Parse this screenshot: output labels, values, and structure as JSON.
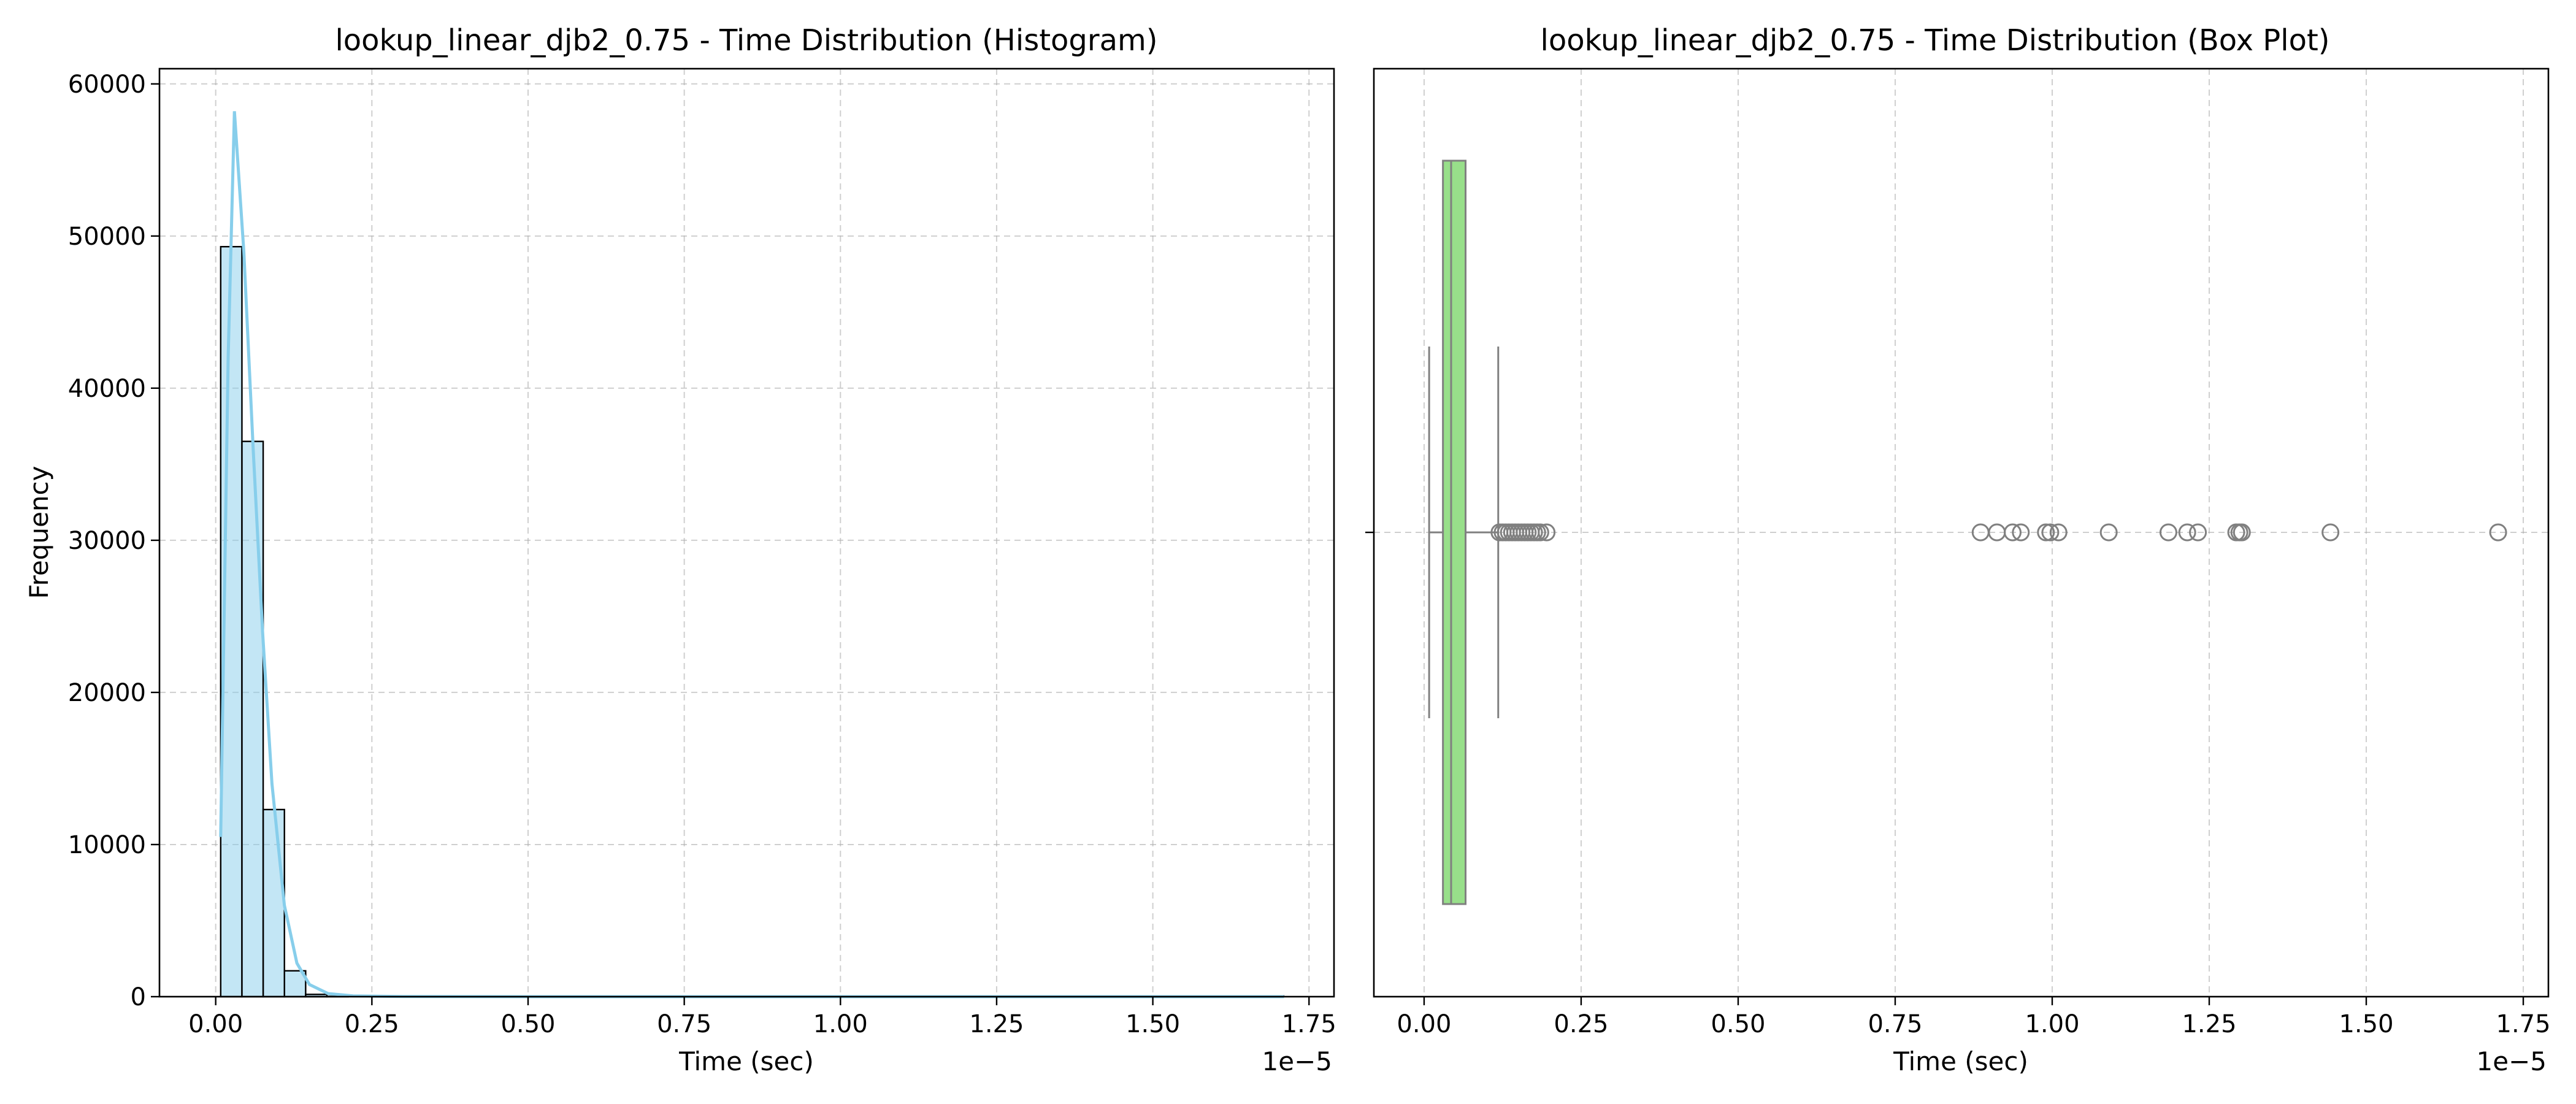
{
  "chart_data": [
    {
      "type": "bar",
      "subtype": "histogram",
      "title": "lookup_linear_djb2_0.75 - Time Distribution (Histogram)",
      "xlabel": "Time (sec)",
      "ylabel": "Frequency",
      "x_offset_text": "1e−5",
      "xlim": [
        -0.09,
        1.79
      ],
      "ylim": [
        0,
        61000
      ],
      "x_ticks": [
        0.0,
        0.25,
        0.5,
        0.75,
        1.0,
        1.25,
        1.5,
        1.75
      ],
      "x_tick_labels": [
        "0.00",
        "0.25",
        "0.50",
        "0.75",
        "1.00",
        "1.25",
        "1.50",
        "1.75"
      ],
      "y_ticks": [
        0,
        10000,
        20000,
        30000,
        40000,
        50000,
        60000
      ],
      "y_tick_labels": [
        "0",
        "10000",
        "20000",
        "30000",
        "40000",
        "50000",
        "60000"
      ],
      "grid": true,
      "bar_color": "#87ceeb",
      "bar_edge_color": "#000000",
      "kde_color": "#87ceeb",
      "bins": [
        {
          "x0": 0.008,
          "x1": 0.042,
          "count": 49300
        },
        {
          "x0": 0.042,
          "x1": 0.076,
          "count": 36500
        },
        {
          "x0": 0.076,
          "x1": 0.11,
          "count": 12300
        },
        {
          "x0": 0.11,
          "x1": 0.144,
          "count": 1700
        },
        {
          "x0": 0.144,
          "x1": 0.178,
          "count": 150
        },
        {
          "x0": 0.178,
          "x1": 0.212,
          "count": 20
        }
      ],
      "tail_bin_width": 0.034,
      "tail_range": [
        0.212,
        1.71
      ],
      "kde": {
        "x": [
          0.008,
          0.02,
          0.03,
          0.045,
          0.06,
          0.075,
          0.09,
          0.11,
          0.13,
          0.15,
          0.18,
          0.22,
          0.3,
          0.5,
          1.0,
          1.5,
          1.71
        ],
        "y": [
          10500,
          42000,
          58200,
          49000,
          36000,
          24000,
          14000,
          6000,
          2200,
          800,
          200,
          50,
          10,
          0,
          0,
          0,
          0
        ]
      }
    },
    {
      "type": "box",
      "title": "lookup_linear_djb2_0.75 - Time Distribution (Box Plot)",
      "xlabel": "Time (sec)",
      "x_offset_text": "1e−5",
      "xlim": [
        -0.08,
        1.79
      ],
      "x_ticks": [
        0.0,
        0.25,
        0.5,
        0.75,
        1.0,
        1.25,
        1.5,
        1.75
      ],
      "x_tick_labels": [
        "0.00",
        "0.25",
        "0.50",
        "0.75",
        "1.00",
        "1.25",
        "1.50",
        "1.75"
      ],
      "grid": true,
      "box_color": "#98df8a",
      "line_color": "#808080",
      "whisker_low": 0.008,
      "q1": 0.03,
      "median": 0.043,
      "q3": 0.066,
      "whisker_high": 0.118,
      "outliers": [
        0.12,
        0.125,
        0.13,
        0.135,
        0.14,
        0.145,
        0.15,
        0.155,
        0.16,
        0.165,
        0.17,
        0.175,
        0.18,
        0.185,
        0.195,
        0.886,
        0.912,
        0.937,
        0.95,
        0.99,
        0.997,
        1.01,
        1.09,
        1.185,
        1.215,
        1.232,
        1.293,
        1.298,
        1.302,
        1.443,
        1.71
      ]
    }
  ]
}
